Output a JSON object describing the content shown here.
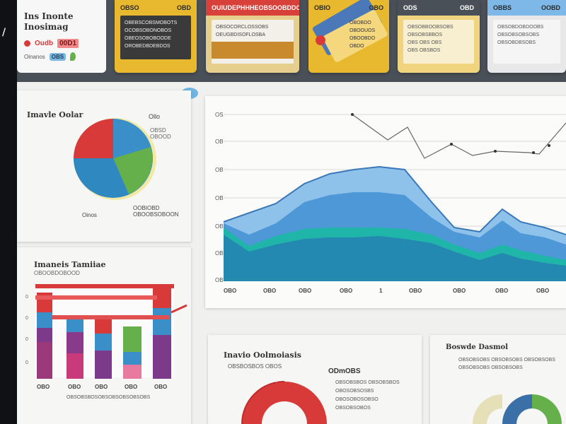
{
  "brand": {
    "title": "Ins Inonte Inosimag",
    "badge_text": "Oudb",
    "badge_pill": "00D1",
    "footer_text": "Oinanos",
    "footer_chip": "OBS"
  },
  "kpi_cards": [
    {
      "head_left": "OBSO",
      "head_right": "OBD",
      "lines": [
        "OBEBSCOBSMOBOTS",
        "OCOBSOBONOBOS",
        "OBEOSOBOBOODE",
        "OROBEDBDEBDOS"
      ]
    },
    {
      "head_left": "OUIUDEPHHHEOBS",
      "head_right": "OOBDDOD",
      "lines": [
        "OBSOCORCLOSSOBS",
        "OEUGBDISOFLOSBA"
      ]
    },
    {
      "head_left": "OBIO",
      "head_right": "OBO",
      "lines": [
        "OBOBDO",
        "OBOOUOS",
        "OBOOBDO",
        "OBDO"
      ]
    },
    {
      "head_left": "ODS",
      "head_right": "OBD",
      "lines": [
        "OBSOBBOOBSOBS",
        "OBSOBSBBOS",
        "OBS OBS OBS",
        "OBS OBSBOS"
      ]
    },
    {
      "head_left": "OBBS",
      "head_right": "OOBD",
      "lines": [
        "OBSOBDOBDOOBS",
        "OBSOBSOBSOBS",
        "OBSOBDBSOBS"
      ]
    }
  ],
  "pie_panel": {
    "title": "Imavle Oolar",
    "side_label": "Ollo",
    "side_sub": "OBSD OBOOD",
    "foot_left": "Oinos",
    "foot_right": "OOBIOBD OBOOBSOBOON"
  },
  "bar_panel": {
    "title": "Imaneis Tamiiae",
    "subtitle": "OBOOBDOBOOD",
    "categories": [
      "OBO",
      "OBO",
      "OBO",
      "OBO",
      "OBO"
    ],
    "footer": "OBSOBSBOSOBSOBSOBSOBSOBS"
  },
  "area_panel": {
    "y_ticks": [
      "OS",
      "OB",
      "OB",
      "OB",
      "OB",
      "OB",
      "OB"
    ],
    "x_ticks": [
      "OBO",
      "OBO",
      "OBO",
      "OBO",
      "1",
      "OBO",
      "OBO",
      "OBO",
      "OBO"
    ]
  },
  "donut_panel": {
    "title": "Inavio Oolmoiasis",
    "sub": "OBSBOSBOS OBOS",
    "right_title": "ODmOBS",
    "right_lines": "OBSOBSBOS OBSOBSBOS OBOSOBSOSBS OBOSOBOSOBSO OBSOBSOBOS"
  },
  "mini_panel": {
    "title": "Boswde Dasmol",
    "lines": "OBSOBSOBS OBSOBSOBS OBSOBSOBS OBSOBSOBS OBSOBSOBS"
  },
  "colors": {
    "red": "#d83a3a",
    "blue": "#3a8fc8",
    "green": "#66b04b",
    "teal": "#1fb5a8",
    "yellow": "#e8b92e"
  }
}
